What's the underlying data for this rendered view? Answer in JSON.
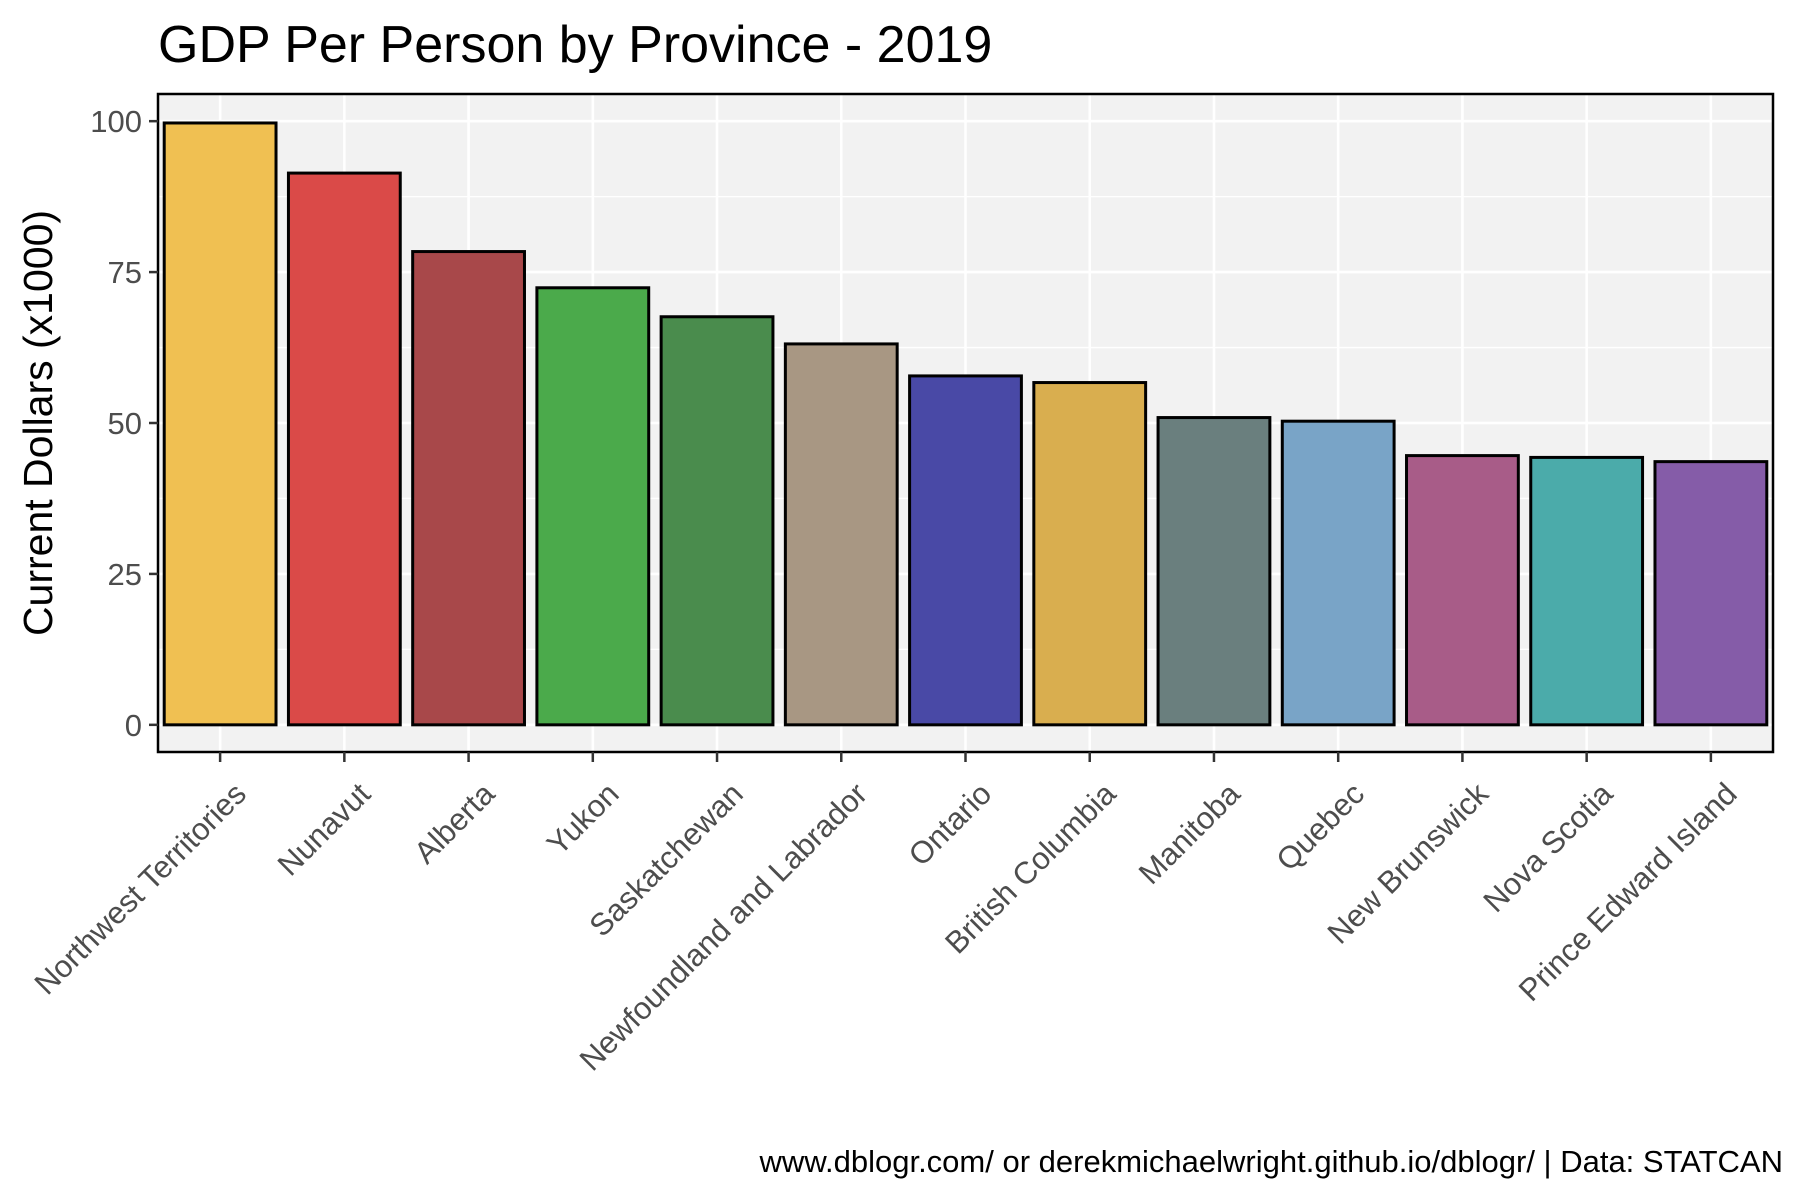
{
  "chart_data": {
    "type": "bar",
    "title": "GDP Per Person by Province - 2019",
    "xlabel": "",
    "ylabel": "Current Dollars (x1000)",
    "ylim": [
      -4.5,
      104.5
    ],
    "yticks": [
      0,
      25,
      50,
      75,
      100
    ],
    "grid": true,
    "legend": "none",
    "categories": [
      "Northwest Territories",
      "Nunavut",
      "Alberta",
      "Yukon",
      "Saskatchewan",
      "Newfoundland and Labrador",
      "Ontario",
      "British Columbia",
      "Manitoba",
      "Quebec",
      "New Brunswick",
      "Nova Scotia",
      "Prince Edward Island"
    ],
    "values": [
      99.7,
      91.4,
      78.4,
      72.4,
      67.6,
      63.1,
      57.8,
      56.7,
      50.9,
      50.3,
      44.6,
      44.3,
      43.6
    ],
    "colors": [
      "#F0C052",
      "#DA4A48",
      "#A8484A",
      "#4BAA4B",
      "#4A8C4D",
      "#A89783",
      "#4949A6",
      "#D9AE4F",
      "#6A7F7E",
      "#79A4C7",
      "#A85C88",
      "#4BABAA",
      "#855CA8"
    ],
    "caption": "www.dblogr.com/ or derekmichaelwright.github.io/dblogr/ | Data: STATCAN"
  }
}
